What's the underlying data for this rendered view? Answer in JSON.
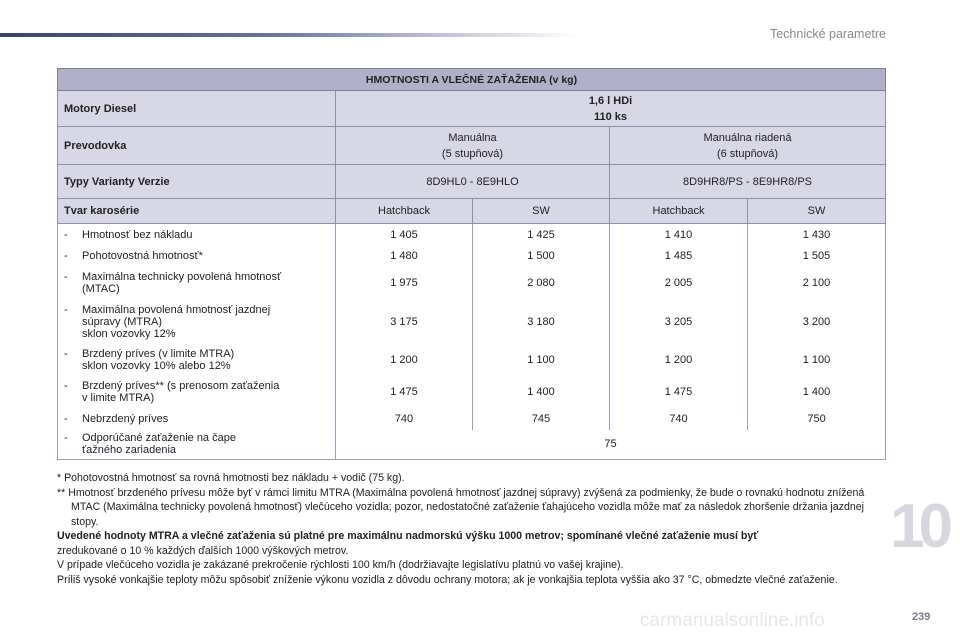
{
  "header": {
    "title": "Technické parametre"
  },
  "chapter_number": "10",
  "page_number": "239",
  "watermark": "carmanualsonline.info",
  "table": {
    "title": "HMOTNOSTI A VLEČNÉ ZAŤAŽENIA (v kg)",
    "engines_label": "Motory Diesel",
    "engine": "1,6 l HDi",
    "engine_power": "110 ks",
    "gearbox_label": "Prevodovka",
    "gearbox_manual": "Manuálna",
    "gearbox_manual_sub": "(5 stupňová)",
    "gearbox_auto": "Manuálna riadená",
    "gearbox_auto_sub": "(6 stupňová)",
    "types_label": "Typy Varianty Verzie",
    "types_manual": "8D9HL0 - 8E9HLO",
    "types_auto": "8D9HR8/PS - 8E9HR8/PS",
    "body_label": "Tvar karosérie",
    "bodies": [
      "Hatchback",
      "SW",
      "Hatchback",
      "SW"
    ],
    "rows": [
      {
        "label": "Hmotnosť bez nákladu",
        "values": [
          "1 405",
          "1 425",
          "1 410",
          "1 430"
        ]
      },
      {
        "label": "Pohotovostná hmotnosť*",
        "values": [
          "1 480",
          "1 500",
          "1 485",
          "1 505"
        ]
      },
      {
        "label": "Maximálna technicky povolená hmotnosť\n(MTAC)",
        "values": [
          "1 975",
          "2 080",
          "2 005",
          "2 100"
        ]
      },
      {
        "label": "Maximálna povolená hmotnosť jazdnej\nsúpravy (MTRA)\nsklon vozovky 12%",
        "values": [
          "3 175",
          "3 180",
          "3 205",
          "3 200"
        ]
      },
      {
        "label": "Brzdený príves (v limite MTRA)\nsklon vozovky 10% alebo 12%",
        "values": [
          "1 200",
          "1 100",
          "1 200",
          "1 100"
        ]
      },
      {
        "label": "Brzdený príves** (s prenosom zaťaženia\nv limite MTRA)",
        "values": [
          "1 475",
          "1 400",
          "1 475",
          "1 400"
        ]
      },
      {
        "label": "Nebrzdený príves",
        "values": [
          "740",
          "745",
          "740",
          "750"
        ]
      }
    ],
    "last_row": {
      "label": "Odporúčané zaťaženie na čape\nťažného zariadenia",
      "value": "75"
    },
    "dash": "-"
  },
  "notes": {
    "n1": "* Pohotovostná hmotnosť sa rovná hmotnosti bez nákladu + vodič (75 kg).",
    "n2": "** Hmotnosť brzdeného prívesu môže byť v rámci limitu MTRA (Maximálna povolená hmotnosť jazdnej súpravy) zvýšená za podmienky, že bude o rovnakú hodnotu znížená MTAC (Maximálna technicky povolená hmotnosť) vlečúceho vozidla; pozor, nedostatočné zaťaženie ťahajúceho vozidla môže mať za následok zhoršenie držania jazdnej stopy.",
    "n3_bold": "Uvedené hodnoty MTRA a vlečné zaťaženia sú platné pre maximálnu nadmorskú výšku 1000 metrov; spomínané vlečné zaťaženie musí byť",
    "n3_rest": "zredukované o 10 % každých ďalších 1000 výškových metrov.",
    "n4": "V prípade vlečúceho vozidla je zakázané prekročenie rýchlosti 100 km/h (dodržiavajte legislatívu platnú vo vašej krajine).",
    "n5": "Príliš vysoké vonkajšie teploty môžu spôsobiť zníženie výkonu vozidla z dôvodu ochrany motora; ak je vonkajšia teplota vyššia ako 37 °C, obmedzte vlečné zaťaženie."
  }
}
